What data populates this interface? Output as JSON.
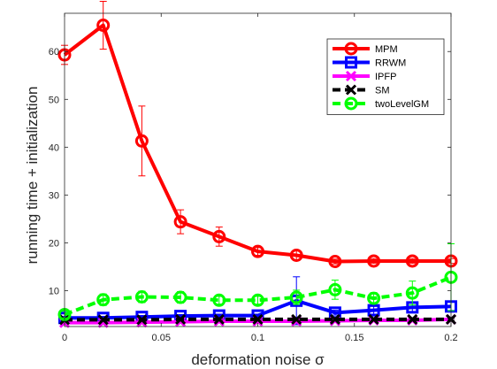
{
  "chart_data": {
    "type": "line",
    "xlabel": "deformation noise σ",
    "ylabel": "running time + initialization",
    "xlim": [
      0,
      0.2
    ],
    "ylim": [
      2.5,
      68
    ],
    "xticks": [
      0,
      0.05,
      0.1,
      0.15,
      0.2
    ],
    "xtick_labels": [
      "0",
      "0.05",
      "0.1",
      "0.15",
      "0.2"
    ],
    "yticks": [
      10,
      20,
      30,
      40,
      50,
      60
    ],
    "ytick_labels": [
      "10",
      "20",
      "30",
      "40",
      "50",
      "60"
    ],
    "grid": false,
    "legend_position": "top-right",
    "x": [
      0,
      0.02,
      0.04,
      0.06,
      0.08,
      0.1,
      0.12,
      0.14,
      0.16,
      0.18,
      0.2
    ],
    "series": [
      {
        "name": "MPM",
        "color": "#ff0000",
        "marker": "circle",
        "line_style": "solid",
        "values": [
          59.3,
          65.5,
          41.3,
          24.4,
          21.3,
          18.2,
          17.4,
          16.1,
          16.2,
          16.2,
          16.2
        ],
        "errors": [
          2.0,
          5.0,
          7.3,
          2.5,
          2.0,
          0.8,
          1.0,
          0.5,
          0.5,
          0.5,
          0.5
        ]
      },
      {
        "name": "RRWM",
        "color": "#0000ff",
        "marker": "square",
        "line_style": "solid",
        "values": [
          4.3,
          4.3,
          4.5,
          4.7,
          4.8,
          4.8,
          7.9,
          5.4,
          5.9,
          6.5,
          6.7
        ],
        "errors": [
          0.3,
          0.3,
          0.3,
          0.3,
          0.3,
          0.3,
          5.0,
          0.5,
          0.8,
          1.0,
          1.0
        ]
      },
      {
        "name": "IPFP",
        "color": "#ff00ff",
        "marker": "x",
        "line_style": "solid",
        "values": [
          3.3,
          3.3,
          3.4,
          3.5,
          3.6,
          3.6,
          3.6,
          3.7,
          3.8,
          3.8,
          4.0
        ],
        "errors": [
          0.2,
          0.2,
          0.2,
          0.2,
          0.2,
          0.2,
          0.2,
          0.2,
          0.2,
          0.2,
          0.2
        ]
      },
      {
        "name": "SM",
        "color": "#000000",
        "marker": "x",
        "line_style": "dashed",
        "values": [
          3.9,
          3.9,
          3.9,
          4.0,
          4.0,
          4.0,
          4.0,
          4.0,
          4.0,
          4.0,
          4.0
        ],
        "errors": [
          0.2,
          0.2,
          0.2,
          0.2,
          0.2,
          0.2,
          0.2,
          0.2,
          0.2,
          0.2,
          0.2
        ]
      },
      {
        "name": "twoLevelGM",
        "color": "#00ff00",
        "marker": "circle",
        "line_style": "dashed",
        "values": [
          5.0,
          8.1,
          8.7,
          8.6,
          8.0,
          8.0,
          8.6,
          10.2,
          8.4,
          9.5,
          12.8
        ],
        "errors": [
          0.7,
          1.2,
          1.2,
          1.2,
          0.8,
          0.8,
          1.5,
          2.0,
          1.2,
          2.5,
          7.0
        ]
      }
    ]
  }
}
